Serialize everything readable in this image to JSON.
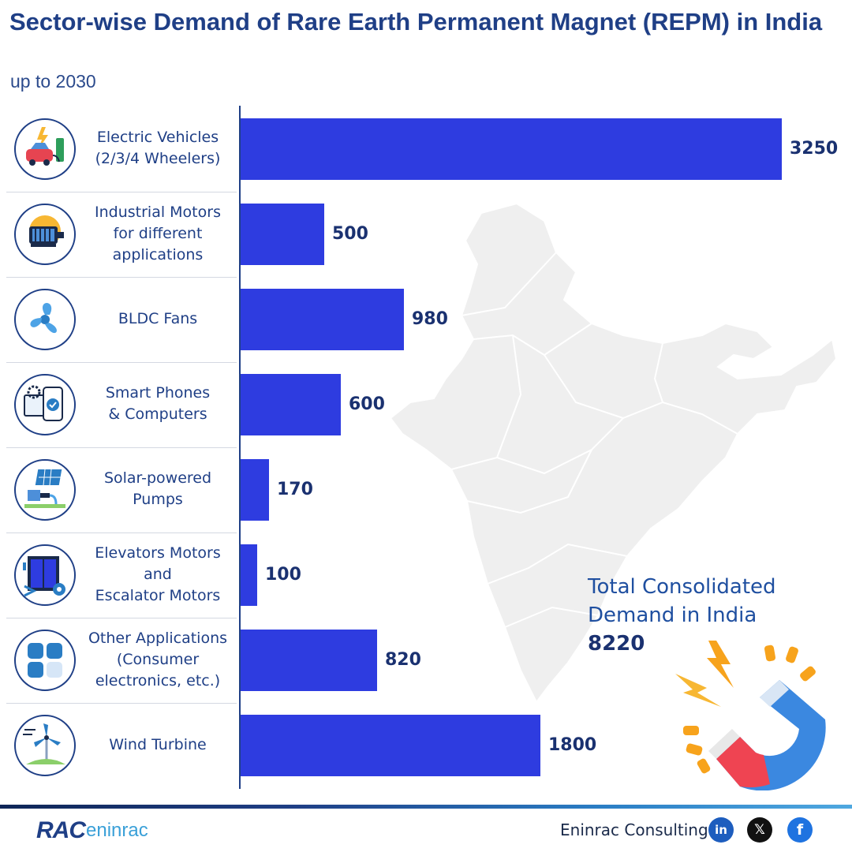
{
  "header": {
    "title": "Sector-wise Demand of Rare Earth Permanent Magnet (REPM) in India",
    "subtitle": "up to 2030"
  },
  "chart_data": {
    "type": "bar",
    "orientation": "horizontal",
    "categories": [
      "Electric Vehicles\n(2/3/4 Wheelers)",
      "Industrial Motors\nfor different\napplications",
      "BLDC Fans",
      "Smart Phones\n& Computers",
      "Solar-powered\nPumps",
      "Elevators Motors\nand\nEscalator Motors",
      "Other Applications\n(Consumer\nelectronics, etc.)",
      "Wind Turbine"
    ],
    "values": [
      3250,
      500,
      980,
      600,
      170,
      100,
      820,
      1800
    ],
    "icons": [
      "electric-car-charging-icon",
      "industrial-motor-icon",
      "fan-icon",
      "smartphone-settings-icon",
      "solar-pump-icon",
      "elevator-icon",
      "apps-grid-icon",
      "wind-turbine-icon"
    ],
    "xlim": [
      0,
      3250
    ],
    "grid": false,
    "bar_color": "#2e3ce0"
  },
  "total": {
    "label_line1": "Total Consolidated",
    "label_line2": "Demand in India",
    "value": "8220"
  },
  "footer": {
    "brand_rac": "RAC",
    "brand_eninrac": "eninrac",
    "company": "Eninrac Consulting",
    "social": [
      "linkedin-icon",
      "x-icon",
      "facebook-icon"
    ]
  },
  "colors": {
    "title": "#1f3f86",
    "bar": "#2e3ce0",
    "map": "#efefef"
  }
}
